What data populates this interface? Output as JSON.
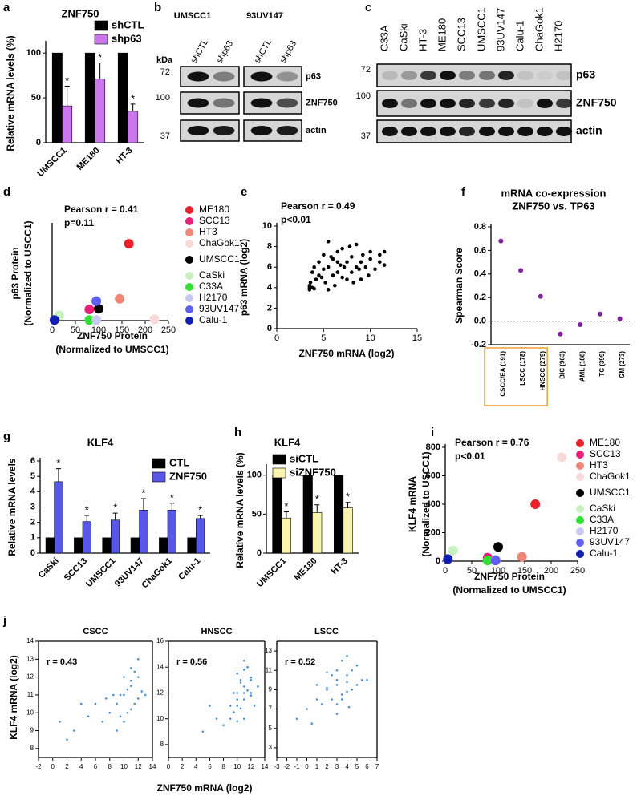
{
  "chart_data": [
    {
      "type": "bar",
      "panel": "a",
      "title": "ZNF750",
      "y_label": "Relative mRNA levels (%)",
      "categories": [
        "UMSCC1",
        "ME180",
        "HT-3"
      ],
      "series": [
        {
          "name": "shCTL",
          "color": "#000000",
          "values": [
            100,
            100,
            100
          ]
        },
        {
          "name": "shp63",
          "color": "#cc77ee",
          "values": [
            41,
            71,
            35
          ],
          "errors": [
            22,
            18,
            8
          ],
          "markers": [
            "*",
            "*",
            "*"
          ]
        }
      ],
      "ylim": [
        0,
        110
      ],
      "yticks": [
        0,
        50,
        100
      ]
    },
    {
      "type": "scatter",
      "panel": "d",
      "annotations": [
        "Pearson r = 0.41",
        "p=0.11"
      ],
      "x_label": [
        "ZNF750 Protein",
        "(Normalized to UMSCC1)"
      ],
      "y_label": [
        "p63 Protein",
        "(Normalized to USCC1)"
      ],
      "xlim": [
        0,
        250
      ],
      "xticks": [
        0,
        50,
        100,
        150,
        200,
        250
      ],
      "ylim": [
        0,
        800
      ],
      "series": [
        {
          "name": "ME180",
          "color": "#e8202a",
          "x": [
            165
          ],
          "values": [
            650
          ]
        },
        {
          "name": "SCC13",
          "color": "#e8207a",
          "x": [
            80
          ],
          "values": [
            95
          ]
        },
        {
          "name": "HT3",
          "color": "#f08878",
          "x": [
            145
          ],
          "values": [
            185
          ]
        },
        {
          "name": "ChaGok1",
          "color": "#f8d8d8",
          "x": [
            220
          ],
          "values": [
            10
          ]
        },
        {
          "name": "UMSCC1",
          "color": "#000000",
          "x": [
            100
          ],
          "values": [
            100
          ]
        },
        {
          "name": "CaSki",
          "color": "#c8f0c0",
          "x": [
            15
          ],
          "values": [
            45
          ]
        },
        {
          "name": "C33A",
          "color": "#30e030",
          "x": [
            80
          ],
          "values": [
            5
          ]
        },
        {
          "name": "H2170",
          "color": "#c8c8f4",
          "x": [
            95
          ],
          "values": [
            5
          ]
        },
        {
          "name": "93UV147",
          "color": "#6060f0",
          "x": [
            95
          ],
          "values": [
            165
          ]
        },
        {
          "name": "Calu-1",
          "color": "#1020b0",
          "x": [
            5
          ],
          "values": [
            5
          ]
        }
      ]
    },
    {
      "type": "scatter",
      "panel": "e",
      "annotations": [
        "Pearson r = 0.49",
        "p<0.01"
      ],
      "x_label": "ZNF750 mRNA (log2)",
      "y_label": "p63 mRNA (log2)",
      "xlim": [
        0,
        15
      ],
      "xticks": [
        0,
        5,
        10,
        15
      ],
      "ylim": [
        0,
        10
      ],
      "yticks": [
        0,
        2,
        4,
        6,
        8,
        10
      ],
      "series": [
        {
          "color": "#000000",
          "x": [
            3.5,
            3.5,
            3.6,
            3.8,
            4,
            4,
            4.2,
            4.5,
            4.8,
            5,
            5,
            5.2,
            5.5,
            5.5,
            5.8,
            6,
            6,
            6.2,
            6.5,
            6.5,
            6.8,
            7,
            7,
            7.2,
            7.5,
            7.5,
            7.8,
            8,
            8,
            8.2,
            8.5,
            8.5,
            8.8,
            9,
            9,
            9.2,
            9.5,
            9.8,
            10,
            10,
            10.5,
            11,
            11,
            11.5,
            11.5,
            4.5,
            5.5,
            6.5,
            3.5,
            3.8
          ],
          "values": [
            3.8,
            4.2,
            4.5,
            5.5,
            3.9,
            6.0,
            4.8,
            6.5,
            5.0,
            5.8,
            7.2,
            4.5,
            6.0,
            3.8,
            7.0,
            5.2,
            6.8,
            4.2,
            5.5,
            7.5,
            6.2,
            5.0,
            7.8,
            6.0,
            4.8,
            6.5,
            8.0,
            5.5,
            7.0,
            4.5,
            6.0,
            8.2,
            5.8,
            6.5,
            4.8,
            7.2,
            6.0,
            5.2,
            7.5,
            6.8,
            5.8,
            6.5,
            7.2,
            6.2,
            7.5,
            5.2,
            8.5,
            6.5,
            4.0,
            4.0
          ]
        }
      ]
    },
    {
      "type": "dot",
      "panel": "f",
      "title": [
        "mRNA co-expression",
        "ZNF750 vs. TP63"
      ],
      "y_label": "Spearman Score",
      "categories": [
        "CSCC/EA (191)",
        "LSCC (178)",
        "HNSCC (279)",
        "BIC (963)",
        "AML (188)",
        "TC (399)",
        "GM (273)"
      ],
      "values": [
        0.68,
        0.43,
        0.21,
        -0.11,
        -0.03,
        0.06,
        0.02
      ],
      "color": "#8020a0",
      "ylim": [
        -0.2,
        0.8
      ],
      "yticks": [
        -0.2,
        {
          "value": 0,
          "label": "0.0"
        },
        0.2,
        0.4,
        0.6,
        0.8
      ]
    },
    {
      "type": "bar",
      "panel": "g",
      "title": "KLF4",
      "y_label": "Relative mRNA levels",
      "categories": [
        "CaSki",
        "SCC13",
        "UMSCC1",
        "93UV147",
        "ChaGok1",
        "Calu-1"
      ],
      "series": [
        {
          "name": "CTL",
          "color": "#000000",
          "values": [
            1,
            1,
            1,
            1,
            1,
            1
          ]
        },
        {
          "name": "ZNF750",
          "color": "#5858e8",
          "values": [
            4.65,
            2.05,
            2.15,
            2.8,
            2.8,
            2.25
          ],
          "errors": [
            0.85,
            0.4,
            0.45,
            0.75,
            0.45,
            0.2
          ],
          "markers": [
            "*",
            "*",
            "*",
            "*",
            "*",
            "*"
          ]
        }
      ],
      "ylim": [
        0,
        6
      ],
      "yticks": [
        0,
        1,
        2,
        3,
        4,
        5,
        6
      ]
    },
    {
      "type": "bar",
      "panel": "h",
      "title": "KLF4",
      "y_label": "Relative mRNA levels (%)",
      "categories": [
        "UMSCC1",
        "ME180",
        "HT-3"
      ],
      "series": [
        {
          "name": "siCTL",
          "color": "#000000",
          "values": [
            100,
            100,
            100
          ]
        },
        {
          "name": "siZNF750",
          "color": "#f8f4b0",
          "values": [
            45,
            52,
            58
          ],
          "errors": [
            8,
            10,
            7
          ],
          "markers": [
            "*",
            "*",
            "*"
          ]
        }
      ],
      "ylim": [
        0,
        110
      ],
      "yticks": [
        0,
        50,
        100
      ]
    },
    {
      "type": "scatter",
      "panel": "i",
      "annotations": [
        "Pearson r = 0.76",
        "p<0.01"
      ],
      "x_label": [
        "ZNF750 Protein",
        "(Normalized to UMSCC1)"
      ],
      "y_label": [
        "KLF4 mRNA",
        "(Normalized to USCC1)"
      ],
      "xlim": [
        0,
        250
      ],
      "xticks": [
        0,
        50,
        100,
        150,
        200,
        250
      ],
      "ylim": [
        0,
        800
      ],
      "yticks": [
        0,
        200,
        400,
        600,
        800
      ],
      "series": [
        {
          "name": "ME180",
          "color": "#e8202a",
          "x": [
            170
          ],
          "values": [
            400
          ]
        },
        {
          "name": "SCC13",
          "color": "#e8207a",
          "x": [
            80
          ],
          "values": [
            25
          ]
        },
        {
          "name": "HT3",
          "color": "#f08878",
          "x": [
            145
          ],
          "values": [
            30
          ]
        },
        {
          "name": "ChaGok1",
          "color": "#f8d8d8",
          "x": [
            220
          ],
          "values": [
            730
          ]
        },
        {
          "name": "UMSCC1",
          "color": "#000000",
          "x": [
            100
          ],
          "values": [
            100
          ]
        },
        {
          "name": "CaSki",
          "color": "#c8f0c0",
          "x": [
            15
          ],
          "values": [
            75
          ]
        },
        {
          "name": "C33A",
          "color": "#30e030",
          "x": [
            80
          ],
          "values": [
            5
          ]
        },
        {
          "name": "H2170",
          "color": "#c8c8f4",
          "x": [
            95
          ],
          "values": [
            10
          ]
        },
        {
          "name": "93UV147",
          "color": "#6060f0",
          "x": [
            95
          ],
          "values": [
            5
          ]
        },
        {
          "name": "Calu-1",
          "color": "#1020b0",
          "x": [
            5
          ],
          "values": [
            15
          ]
        }
      ]
    },
    {
      "type": "scatter",
      "panel": "j",
      "title": "CSCC",
      "annotations": [
        "r = 0.43"
      ],
      "y_label": "KLF4 mRNA (log2)",
      "xlim": [
        -2,
        14
      ],
      "xticks": [
        -2,
        0,
        2,
        4,
        6,
        8,
        10,
        12,
        14
      ],
      "ylim": [
        7.5,
        14
      ],
      "yticks": [
        8,
        9,
        10,
        11,
        12,
        13,
        14
      ],
      "series": [
        {
          "color": "#4a90d8",
          "x": [
            10,
            11,
            12,
            11.5,
            10.5,
            9,
            9.5,
            12,
            11,
            10,
            8,
            7,
            6,
            5,
            3,
            2,
            12.5,
            11,
            10,
            9,
            12,
            13,
            11,
            10.5,
            8.5,
            4,
            1,
            11.5,
            9.5,
            7.5
          ],
          "values": [
            11,
            11.5,
            12,
            10.5,
            10,
            10.5,
            11,
            13,
            12.5,
            9.5,
            10,
            9.5,
            10.5,
            9.8,
            9,
            8.5,
            11.2,
            11.8,
            12,
            9,
            10.8,
            11,
            10.2,
            11.3,
            11,
            10.5,
            9.5,
            12.3,
            9.8,
            10.8
          ]
        }
      ]
    },
    {
      "type": "scatter",
      "title": "HNSCC",
      "annotations": [
        "r = 0.56"
      ],
      "x_label": "ZNF750 mRNA (log2)",
      "xlim": [
        0,
        14
      ],
      "xticks": [
        0,
        2,
        4,
        6,
        8,
        10,
        12,
        14
      ],
      "ylim": [
        7,
        16
      ],
      "yticks": [
        8,
        10,
        12,
        14,
        16
      ],
      "series": [
        {
          "color": "#4a90d8",
          "x": [
            10,
            10.5,
            11,
            11.5,
            12,
            10,
            9.5,
            11,
            12,
            10.5,
            11,
            9,
            8,
            12.5,
            11,
            10,
            11.5,
            10.5,
            9.5,
            12,
            7,
            5,
            10,
            11,
            12,
            11,
            10,
            9,
            13,
            6
          ],
          "values": [
            12,
            13,
            12.5,
            14,
            13,
            11,
            10.5,
            11.5,
            12,
            12.8,
            13.8,
            10,
            9.5,
            11,
            14.5,
            11.5,
            12.2,
            10.8,
            12,
            13.2,
            10,
            9,
            13.5,
            10,
            11.8,
            12,
            9.8,
            11,
            12.5,
            11
          ]
        }
      ]
    },
    {
      "type": "scatter",
      "title": "LSCC",
      "annotations": [
        "r = 0.52"
      ],
      "xlim": [
        -3,
        7
      ],
      "xticks": [
        -3,
        -2,
        -1,
        0,
        1,
        2,
        3,
        4,
        5,
        6,
        7
      ],
      "ylim": [
        2,
        14
      ],
      "yticks": [
        3,
        5,
        7,
        9,
        11,
        13
      ],
      "series": [
        {
          "color": "#4a90d8",
          "x": [
            2,
            3,
            4,
            3.5,
            2.5,
            4.5,
            5,
            3,
            1,
            0,
            4,
            3,
            2,
            5.5,
            3.5,
            1.5,
            4,
            2.5,
            3,
            4.5,
            -1,
            0.5,
            5,
            6,
            3,
            2,
            4,
            3.5,
            1,
            4.2
          ],
          "values": [
            9,
            10,
            10.5,
            8.5,
            8,
            11,
            9.5,
            7.5,
            8,
            7,
            9.8,
            11,
            9.2,
            10,
            12,
            7.5,
            8.8,
            10.5,
            6.5,
            9,
            6,
            5.5,
            11.5,
            10,
            9.5,
            10.8,
            12.5,
            8,
            9.5,
            7.2
          ]
        }
      ]
    }
  ],
  "blots": [
    {
      "panel": "b",
      "groups": [
        "UMSCC1",
        "93UV147"
      ],
      "unit": "kDa",
      "lanes": [
        "shCTL",
        "shp63",
        "shCTL",
        "shp63"
      ],
      "markers": [
        72,
        100,
        37
      ],
      "proteins": [
        "p63",
        "ZNF750",
        "actin"
      ]
    },
    {
      "panel": "c",
      "lanes": [
        "C33A",
        "CaSki",
        "HT-3",
        "ME180",
        "SCC13",
        "UMSCC1",
        "93UV147",
        "Calu-1",
        "ChaGok1",
        "H2170"
      ],
      "markers": [
        72,
        100,
        37
      ],
      "proteins": [
        "p63",
        "ZNF750",
        "actin"
      ]
    }
  ]
}
